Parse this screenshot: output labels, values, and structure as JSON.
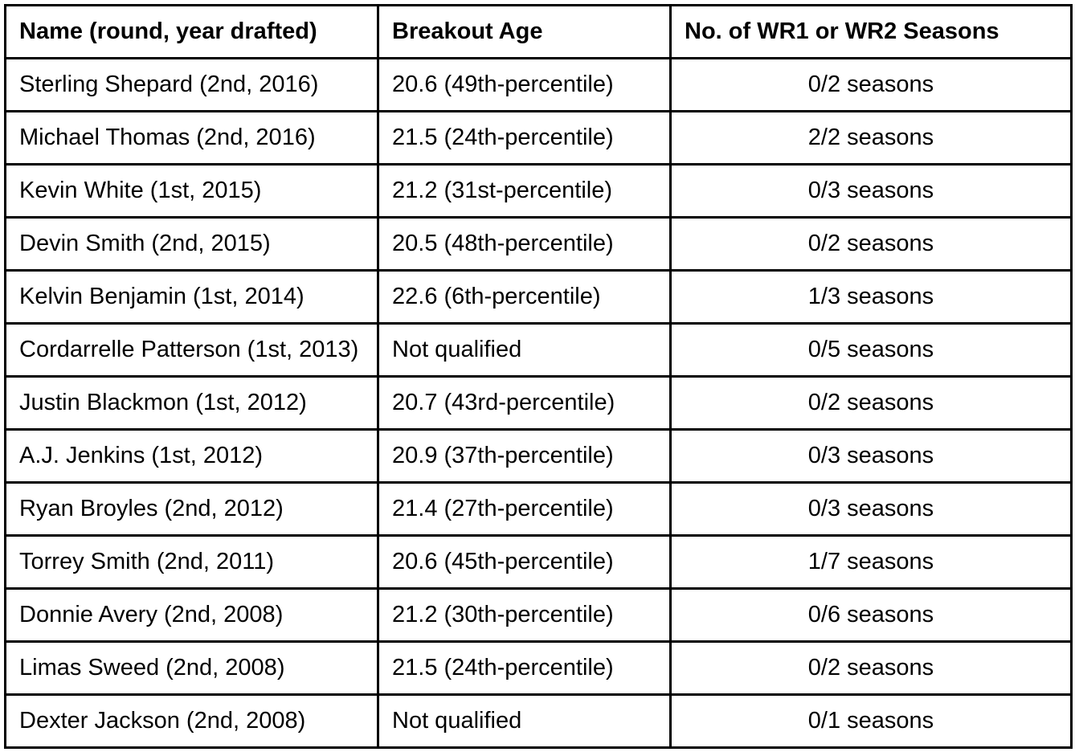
{
  "table": {
    "columns": [
      "Name (round, year drafted)",
      "Breakout Age",
      "No. of WR1 or WR2 Seasons"
    ],
    "rows": [
      [
        "Sterling Shepard (2nd, 2016)",
        "20.6 (49th-percentile)",
        "0/2 seasons"
      ],
      [
        "Michael Thomas (2nd, 2016)",
        "21.5 (24th-percentile)",
        "2/2 seasons"
      ],
      [
        "Kevin White (1st, 2015)",
        "21.2 (31st-percentile)",
        "0/3 seasons"
      ],
      [
        "Devin Smith (2nd, 2015)",
        "20.5 (48th-percentile)",
        "0/2 seasons"
      ],
      [
        "Kelvin Benjamin (1st, 2014)",
        "22.6 (6th-percentile)",
        "1/3 seasons"
      ],
      [
        "Cordarrelle Patterson (1st, 2013)",
        "Not qualified",
        "0/5 seasons"
      ],
      [
        "Justin Blackmon (1st, 2012)",
        "20.7 (43rd-percentile)",
        "0/2 seasons"
      ],
      [
        "A.J. Jenkins (1st, 2012)",
        "20.9 (37th-percentile)",
        "0/3 seasons"
      ],
      [
        "Ryan Broyles (2nd, 2012)",
        "21.4 (27th-percentile)",
        "0/3 seasons"
      ],
      [
        "Torrey Smith (2nd, 2011)",
        "20.6 (45th-percentile)",
        "1/7 seasons"
      ],
      [
        "Donnie Avery (2nd, 2008)",
        "21.2 (30th-percentile)",
        "0/6 seasons"
      ],
      [
        "Limas Sweed (2nd, 2008)",
        "21.5 (24th-percentile)",
        "0/2 seasons"
      ],
      [
        "Dexter Jackson (2nd, 2008)",
        "Not qualified",
        "0/1 seasons"
      ]
    ],
    "colors": {
      "border": "#000000",
      "text": "#000000",
      "background": "#ffffff"
    }
  }
}
